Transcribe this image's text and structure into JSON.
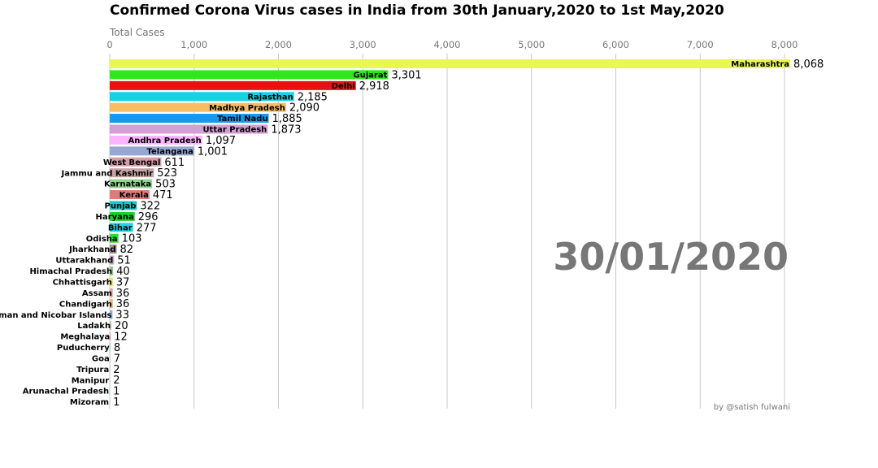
{
  "chart_data": {
    "type": "bar",
    "orientation": "horizontal",
    "title": "Confirmed Corona Virus cases in India from 30th January,2020 to 1st May,2020",
    "xlabel": "Total Cases",
    "xlim": [
      0,
      8000
    ],
    "xticks": [
      "0",
      "1,000",
      "2,000",
      "3,000",
      "4,000",
      "5,000",
      "6,000",
      "7,000",
      "8,000"
    ],
    "grid": true,
    "date_label": "30/01/2020",
    "credit": "by @satish fulwani",
    "categories": [
      "Maharashtra",
      "Gujarat",
      "Delhi",
      "Rajasthan",
      "Madhya Pradesh",
      "Tamil Nadu",
      "Uttar Pradesh",
      "Andhra Pradesh",
      "Telangana",
      "West Bengal",
      "Jammu and Kashmir",
      "Karnataka",
      "Kerala",
      "Punjab",
      "Haryana",
      "Bihar",
      "Odisha",
      "Jharkhand",
      "Uttarakhand",
      "Himachal Pradesh",
      "Chhattisgarh",
      "Assam",
      "Chandigarh",
      "Andaman and Nicobar Islands",
      "Ladakh",
      "Meghalaya",
      "Puducherry",
      "Goa",
      "Tripura",
      "Manipur",
      "Arunachal Pradesh",
      "Mizoram"
    ],
    "values": [
      8068,
      3301,
      2918,
      2185,
      2090,
      1885,
      1873,
      1097,
      1001,
      611,
      523,
      503,
      471,
      322,
      296,
      277,
      103,
      82,
      51,
      40,
      37,
      36,
      36,
      33,
      20,
      12,
      8,
      7,
      2,
      2,
      1,
      1
    ],
    "value_labels": [
      "8,068",
      "3,301",
      "2,918",
      "2,185",
      "2,090",
      "1,885",
      "1,873",
      "1,097",
      "1,001",
      "611",
      "523",
      "503",
      "471",
      "322",
      "296",
      "277",
      "103",
      "82",
      "51",
      "40",
      "37",
      "36",
      "36",
      "33",
      "20",
      "12",
      "8",
      "7",
      "2",
      "2",
      "1",
      "1"
    ],
    "colors": [
      "#e8f84f",
      "#2ee81a",
      "#e81212",
      "#16d2e8",
      "#f8bc62",
      "#1598ee",
      "#d49fd4",
      "#fdb3fd",
      "#96a8d2",
      "#d79aa8",
      "#c7a3a3",
      "#8fd58f",
      "#e07a7a",
      "#13c9c9",
      "#16d42a",
      "#16d8f0",
      "#2edc2e",
      "#9e8f8f",
      "#c7a3c7",
      "#8ec58e",
      "#e8e85a",
      "#e8a0a0",
      "#e8b86a",
      "#8ab4e8",
      "#c6c6a6",
      "#e6a2d0",
      "#7dd9b9",
      "#d6b28c",
      "#9fb0f0",
      "#c8c8c8",
      "#b0e0b0",
      "#e0c0e0"
    ]
  }
}
